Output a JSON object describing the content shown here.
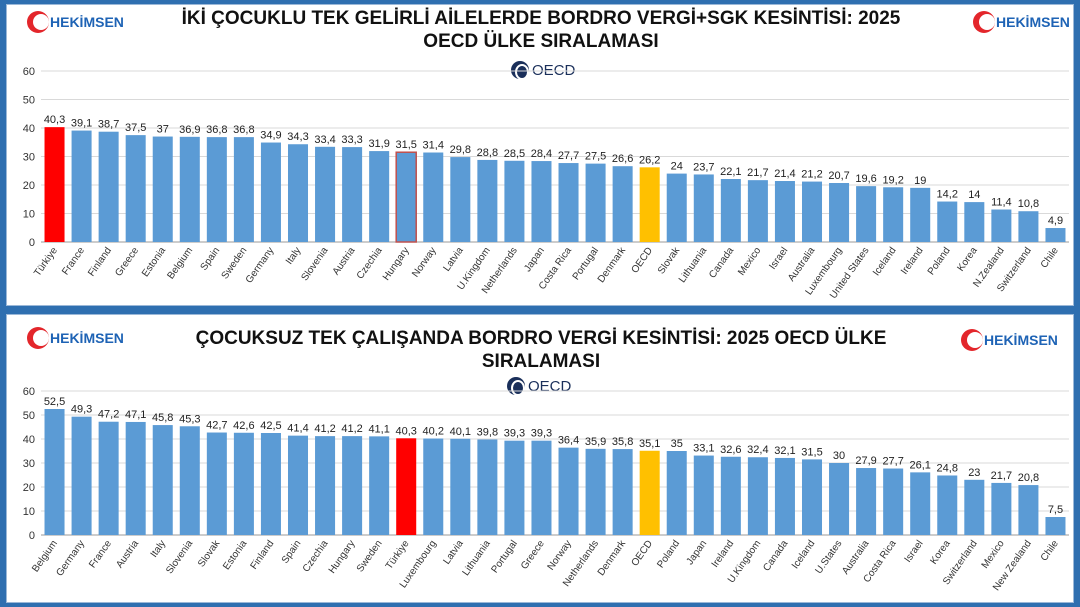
{
  "brand": {
    "name": "HEKİMSEN",
    "source": "OECD"
  },
  "colors": {
    "default": "#5b9bd5",
    "highlight": "#ff0000",
    "average": "#ffc000",
    "outline": "#c0504d"
  },
  "chart_data": [
    {
      "type": "bar",
      "title_line1": "İKİ ÇOCUKLU TEK GELİRLİ AİLELERDE BORDRO VERGİ+SGK KESİNTİSİ: 2025",
      "title_line2": "OECD ÜLKE SIRALAMASI",
      "ylim": [
        0,
        60
      ],
      "yticks": [
        0,
        10,
        20,
        30,
        40,
        50,
        60
      ],
      "grid": true,
      "categories": [
        "Türkiye",
        "France",
        "Finland",
        "Greece",
        "Estonia",
        "Belgium",
        "Spain",
        "Sweden",
        "Germany",
        "Italy",
        "Slovenia",
        "Austria",
        "Czechia",
        "Hungary",
        "Norway",
        "Latvia",
        "U.Kingdom",
        "Netherlands",
        "Japan",
        "Costa Rica",
        "Portugal",
        "Denmark",
        "OECD",
        "Slovak",
        "Lithuania",
        "Canada",
        "Mexico",
        "Israel",
        "Australia",
        "Luxembourg",
        "United States",
        "Iceland",
        "Ireland",
        "Poland",
        "Korea",
        "N.Zealand",
        "Switzerland",
        "Chile"
      ],
      "values": [
        40.3,
        39.1,
        38.7,
        37.5,
        37,
        36.9,
        36.8,
        36.8,
        34.9,
        34.3,
        33.4,
        33.3,
        31.9,
        31.5,
        31.4,
        29.8,
        28.8,
        28.5,
        28.4,
        27.7,
        27.5,
        26.6,
        26.2,
        24,
        23.7,
        22.1,
        21.7,
        21.4,
        21.2,
        20.7,
        19.6,
        19.2,
        19,
        14.2,
        14,
        11.4,
        10.8,
        4.9
      ],
      "labels": [
        "40,3",
        "39,1",
        "38,7",
        "37,5",
        "37",
        "36,9",
        "36,8",
        "36,8",
        "34,9",
        "34,3",
        "33,4",
        "33,3",
        "31,9",
        "31,5",
        "31,4",
        "29,8",
        "28,8",
        "28,5",
        "28,4",
        "27,7",
        "27,5",
        "26,6",
        "26,2",
        "24",
        "23,7",
        "22,1",
        "21,7",
        "21,4",
        "21,2",
        "20,7",
        "19,6",
        "19,2",
        "19",
        "14,2",
        "14",
        "11,4",
        "10,8",
        "4,9"
      ],
      "highlight": "Türkiye",
      "average": "OECD",
      "outlined": "Hungary"
    },
    {
      "type": "bar",
      "title_line1": "ÇOCUKSUZ TEK ÇALIŞANDA BORDRO VERGİ  KESİNTİSİ: 2025 OECD ÜLKE",
      "title_line2": "SIRALAMASI",
      "ylim": [
        0,
        60
      ],
      "yticks": [
        0,
        10,
        20,
        30,
        40,
        50,
        60
      ],
      "grid": true,
      "categories": [
        "Belgium",
        "Germany",
        "France",
        "Austria",
        "Italy",
        "Slovenia",
        "Slovak",
        "Estonia",
        "Finland",
        "Spain",
        "Czechia",
        "Hungary",
        "Sweden",
        "Türkiye",
        "Luxembourg",
        "Latvia",
        "Lithuania",
        "Portugal",
        "Greece",
        "Norway",
        "Netherlands",
        "Denmark",
        "OECD",
        "Poland",
        "Japan",
        "Ireland",
        "U.Kingdom",
        "Canada",
        "Iceland",
        "U.States",
        "Australia",
        "Costa Rica",
        "Israel",
        "Korea",
        "Switzerland",
        "Mexico",
        "New Zealand",
        "Chile"
      ],
      "values": [
        52.5,
        49.3,
        47.2,
        47.1,
        45.8,
        45.3,
        42.7,
        42.6,
        42.5,
        41.4,
        41.2,
        41.2,
        41.1,
        40.3,
        40.2,
        40.1,
        39.8,
        39.3,
        39.3,
        36.4,
        35.9,
        35.8,
        35.1,
        35,
        33.1,
        32.6,
        32.4,
        32.1,
        31.5,
        30,
        27.9,
        27.7,
        26.1,
        24.8,
        23,
        21.7,
        20.8,
        7.5
      ],
      "labels": [
        "52,5",
        "49,3",
        "47,2",
        "47,1",
        "45,8",
        "45,3",
        "42,7",
        "42,6",
        "42,5",
        "41,4",
        "41,2",
        "41,2",
        "41,1",
        "40,3",
        "40,2",
        "40,1",
        "39,8",
        "39,3",
        "39,3",
        "36,4",
        "35,9",
        "35,8",
        "35,1",
        "35",
        "33,1",
        "32,6",
        "32,4",
        "32,1",
        "31,5",
        "30",
        "27,9",
        "27,7",
        "26,1",
        "24,8",
        "23",
        "21,7",
        "20,8",
        "7,5"
      ],
      "highlight": "Türkiye",
      "average": "OECD",
      "outlined": ""
    }
  ]
}
